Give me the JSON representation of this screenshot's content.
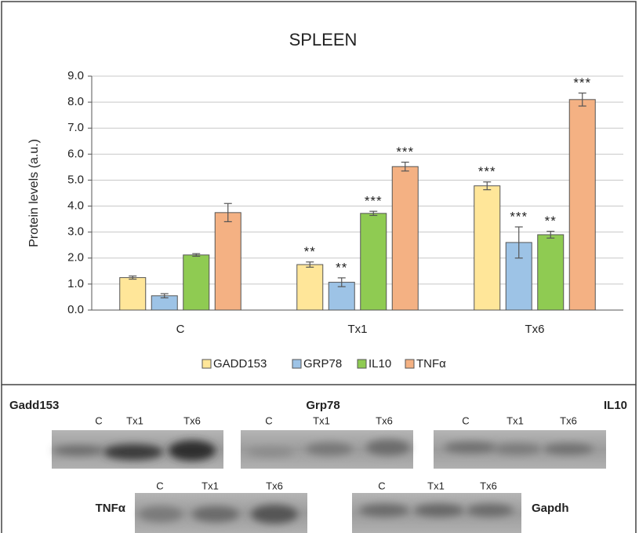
{
  "chart_data": {
    "type": "bar",
    "title": "SPLEEN",
    "y_label": "Protein levels (a.u.)",
    "categories": [
      "C",
      "Tx1",
      "Tx6"
    ],
    "series": [
      {
        "name": "GADD153",
        "color": "#ffe699",
        "values": [
          1.25,
          1.75,
          4.78
        ],
        "errors": [
          0.06,
          0.1,
          0.15
        ],
        "annotations": [
          null,
          "**",
          "***"
        ]
      },
      {
        "name": "GRP78",
        "color": "#9dc3e6",
        "values": [
          0.55,
          1.07,
          2.6
        ],
        "errors": [
          0.08,
          0.17,
          0.6
        ],
        "annotations": [
          null,
          "**",
          "***"
        ]
      },
      {
        "name": "IL10",
        "color": "#8fcb52",
        "values": [
          2.12,
          3.72,
          2.9
        ],
        "errors": [
          0.05,
          0.08,
          0.13
        ],
        "annotations": [
          null,
          "***",
          "**"
        ]
      },
      {
        "name": "TNFα",
        "color": "#f4b183",
        "values": [
          3.75,
          5.52,
          8.1
        ],
        "errors": [
          0.35,
          0.17,
          0.25
        ],
        "annotations": [
          null,
          "***",
          "***"
        ]
      }
    ],
    "ylim": [
      0,
      9
    ],
    "yticks": [
      {
        "value": 0,
        "label": "0.0"
      },
      {
        "value": 1,
        "label": "1.0"
      },
      {
        "value": 2,
        "label": "2.0"
      },
      {
        "value": 3,
        "label": "3.0"
      },
      {
        "value": 4,
        "label": "4.0"
      },
      {
        "value": 5,
        "label": "5.0"
      },
      {
        "value": 6,
        "label": "6.0"
      },
      {
        "value": 7,
        "label": "7.0"
      },
      {
        "value": 8,
        "label": "8.0"
      },
      {
        "value": 9,
        "label": "9.0"
      }
    ],
    "grid": true,
    "legend": "bottom"
  },
  "blots": [
    {
      "label": "Gadd153",
      "lanes": [
        "C",
        "Tx1",
        "Tx6"
      ]
    },
    {
      "label": "Grp78",
      "lanes": [
        "C",
        "Tx1",
        "Tx6"
      ]
    },
    {
      "label": "IL10",
      "lanes": [
        "C",
        "Tx1",
        "Tx6"
      ]
    },
    {
      "label": "TNFα",
      "lanes": [
        "C",
        "Tx1",
        "Tx6"
      ]
    },
    {
      "label": "Gapdh",
      "lanes": [
        "C",
        "Tx1",
        "Tx6"
      ]
    }
  ]
}
